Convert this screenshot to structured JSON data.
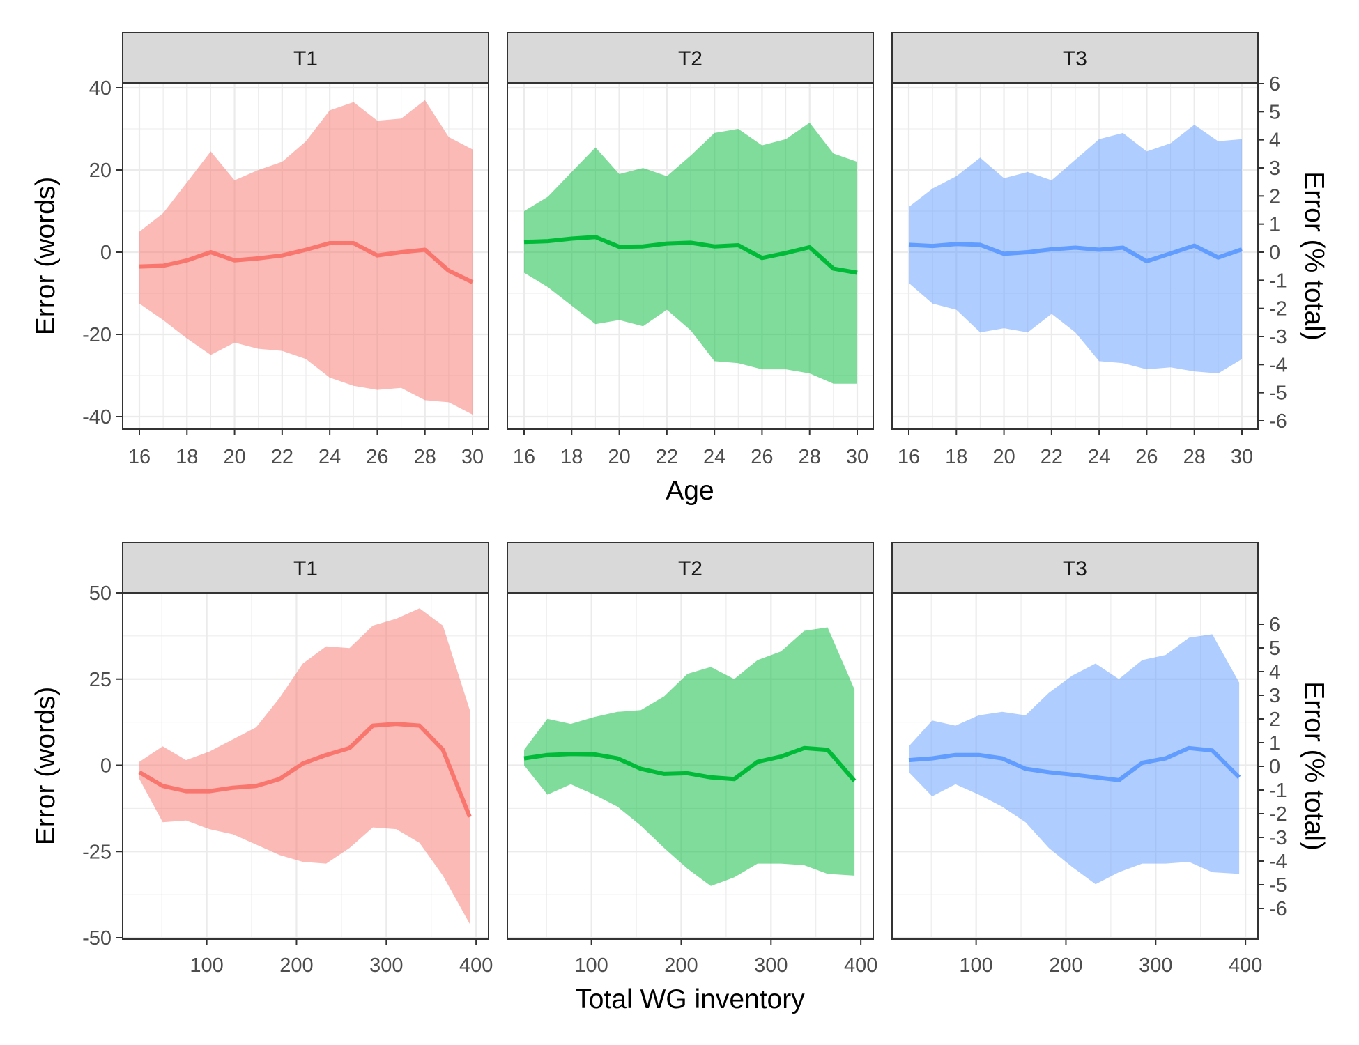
{
  "colors": {
    "T1": "#F8766D",
    "T2": "#00BA38",
    "T3": "#619CFF"
  },
  "chart_data": [
    {
      "type": "line",
      "xlabel": "Age",
      "ylabel": "Error (words)",
      "y2label": "Error (% total)",
      "xlim": [
        16,
        30
      ],
      "xticks": [
        16,
        18,
        20,
        22,
        24,
        26,
        28,
        30
      ],
      "ylim": [
        -40,
        40
      ],
      "yticks": [
        -40,
        -20,
        0,
        20,
        40
      ],
      "y2ticks": [
        -6,
        -5,
        -4,
        -3,
        -2,
        -1,
        0,
        1,
        2,
        3,
        4,
        5,
        6
      ],
      "grid": true,
      "panels": [
        {
          "label": "T1",
          "color_key": "T1",
          "x": [
            16,
            17,
            18,
            19,
            20,
            21,
            22,
            23,
            24,
            25,
            26,
            27,
            28,
            29,
            30
          ],
          "mean": [
            -3.5,
            -3.3,
            -2,
            0,
            -2,
            -1.5,
            -0.8,
            0.6,
            2.2,
            2.2,
            -0.8,
            0,
            0.6,
            -4.5,
            -7.3
          ],
          "upper": [
            5,
            9.5,
            17,
            24.5,
            17.5,
            20,
            22,
            27,
            34.5,
            36.5,
            32,
            32.5,
            37,
            28,
            25
          ],
          "lower": [
            -12.5,
            -16.5,
            -21,
            -25,
            -22,
            -23.5,
            -24,
            -26,
            -30.5,
            -32.5,
            -33.5,
            -33,
            -36,
            -36.5,
            -39.5
          ]
        },
        {
          "label": "T2",
          "color_key": "T2",
          "x": [
            16,
            17,
            18,
            19,
            20,
            21,
            22,
            23,
            24,
            25,
            26,
            27,
            28,
            29,
            30
          ],
          "mean": [
            2.5,
            2.7,
            3.3,
            3.7,
            1.3,
            1.4,
            2.1,
            2.3,
            1.4,
            1.7,
            -1.4,
            -0.2,
            1.2,
            -4,
            -5
          ],
          "upper": [
            10,
            13.5,
            19.5,
            25.5,
            19,
            20.5,
            18.5,
            23.5,
            29,
            30,
            26,
            27.5,
            31.5,
            24,
            22
          ],
          "lower": [
            -5,
            -8.5,
            -13,
            -17.5,
            -16.5,
            -18,
            -14,
            -19,
            -26.5,
            -27,
            -28.5,
            -28.5,
            -29.5,
            -32,
            -32
          ]
        },
        {
          "label": "T3",
          "color_key": "T3",
          "x": [
            16,
            17,
            18,
            19,
            20,
            21,
            22,
            23,
            24,
            25,
            26,
            27,
            28,
            29,
            30
          ],
          "mean": [
            1.8,
            1.5,
            2,
            1.8,
            -0.4,
            0,
            0.7,
            1.1,
            0.6,
            1.1,
            -2.2,
            -0.3,
            1.6,
            -1.3,
            0.7
          ],
          "upper": [
            11,
            15.5,
            18.5,
            23,
            18,
            19.5,
            17.5,
            22.5,
            27.5,
            29,
            24.5,
            26.5,
            31,
            27,
            27.5
          ],
          "lower": [
            -7.5,
            -12.5,
            -14,
            -19.5,
            -18.5,
            -19.5,
            -15,
            -19.5,
            -26.5,
            -27,
            -28.5,
            -28,
            -29,
            -29.5,
            -26
          ]
        }
      ]
    },
    {
      "type": "line",
      "xlabel": "Total WG inventory",
      "ylabel": "Error (words)",
      "y2label": "Error (% total)",
      "xlim": [
        25,
        396
      ],
      "xticks": [
        100,
        200,
        300,
        400
      ],
      "ylim": [
        -50,
        50
      ],
      "yticks": [
        -50,
        -25,
        0,
        25,
        50
      ],
      "y2ticks": [
        -6,
        -5,
        -4,
        -3,
        -2,
        -1,
        0,
        1,
        2,
        3,
        4,
        5,
        6
      ],
      "grid": true,
      "panels": [
        {
          "label": "T1",
          "color_key": "T1",
          "x": [
            25,
            51,
            77,
            103,
            129,
            155,
            181,
            207,
            233,
            259,
            285,
            311,
            337,
            363,
            393
          ],
          "mean": [
            -2,
            -6,
            -7.5,
            -7.5,
            -6.5,
            -6,
            -4,
            0.5,
            3,
            5,
            11.5,
            12,
            11.5,
            4.5,
            -15
          ],
          "upper": [
            1,
            5.5,
            1.5,
            4,
            7.5,
            11,
            19.5,
            29.5,
            34.5,
            34,
            40.5,
            42.5,
            45.5,
            40.5,
            16
          ],
          "lower": [
            -4,
            -16.5,
            -16,
            -18.5,
            -20,
            -23,
            -26,
            -28,
            -28.5,
            -24,
            -18,
            -18.5,
            -22.5,
            -32,
            -46
          ]
        },
        {
          "label": "T2",
          "color_key": "T2",
          "x": [
            25,
            51,
            77,
            103,
            129,
            155,
            181,
            207,
            233,
            259,
            285,
            311,
            337,
            363,
            393
          ],
          "mean": [
            2,
            3,
            3.3,
            3.2,
            2,
            -1,
            -2.5,
            -2.3,
            -3.5,
            -4,
            1,
            2.5,
            5,
            4.5,
            -4.5
          ],
          "upper": [
            4.5,
            13.5,
            12,
            14,
            15.5,
            16,
            20,
            26.5,
            28.5,
            25,
            30.5,
            33,
            39,
            40,
            22
          ],
          "lower": [
            0,
            -8.5,
            -5.5,
            -8.5,
            -12,
            -17.5,
            -24,
            -30,
            -35,
            -32.5,
            -28.5,
            -28.5,
            -29,
            -31.5,
            -32
          ]
        },
        {
          "label": "T3",
          "color_key": "T3",
          "x": [
            25,
            51,
            77,
            103,
            129,
            155,
            181,
            207,
            233,
            259,
            285,
            311,
            337,
            363,
            393
          ],
          "mean": [
            1.5,
            2,
            3,
            3,
            2,
            -1,
            -2,
            -2.7,
            -3.5,
            -4.3,
            0.7,
            2,
            5,
            4.3,
            -3.5
          ],
          "upper": [
            5.5,
            13,
            11.5,
            14.5,
            15.5,
            14.5,
            21,
            26,
            29.5,
            25,
            30.5,
            32,
            37,
            38,
            24
          ],
          "lower": [
            -2,
            -9,
            -5.5,
            -8.5,
            -12,
            -16.5,
            -24,
            -29.5,
            -34.5,
            -31,
            -28.5,
            -28.5,
            -28,
            -31,
            -31.5
          ]
        }
      ]
    }
  ]
}
